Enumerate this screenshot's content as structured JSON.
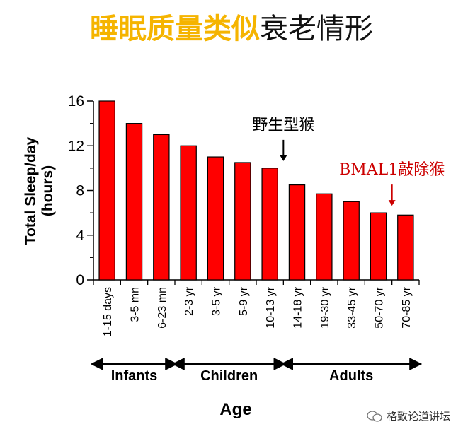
{
  "title": {
    "highlight": "睡眠质量类似",
    "rest": "衰老情形",
    "highlight_color": "#f5b400"
  },
  "chart_data": {
    "type": "bar",
    "ylabel_line1": "Total Sleep/day",
    "ylabel_line2": "(hours)",
    "xlabel": "Age",
    "ylim": [
      0,
      16
    ],
    "yticks": [
      "0",
      "4",
      "8",
      "12",
      "16"
    ],
    "categories": [
      "1-15 days",
      "3-5 mn",
      "6-23 mn",
      "2-3 yr",
      "3-5 yr",
      "5-9 yr",
      "10-13 yr",
      "14-18 yr",
      "19-30 yr",
      "33-45 yr",
      "50-70 yr",
      "70-85 yr"
    ],
    "values": [
      16,
      14,
      13,
      12,
      11,
      10.5,
      10,
      8.5,
      7.7,
      7,
      6,
      5.8
    ],
    "bar_color": "#ff0000",
    "groups": [
      {
        "label": "Infants",
        "start": 0,
        "end": 2
      },
      {
        "label": "Children",
        "start": 3,
        "end": 6
      },
      {
        "label": "Adults",
        "start": 7,
        "end": 11
      }
    ],
    "annotations": [
      {
        "text": "野生型猴",
        "target_index": 6,
        "color": "#000000"
      },
      {
        "text": "BMAL1敲除猴",
        "target_index": 10,
        "color": "#cc0000"
      }
    ]
  },
  "watermark": {
    "text": "格致论道讲坛",
    "icon": "wechat-icon"
  }
}
